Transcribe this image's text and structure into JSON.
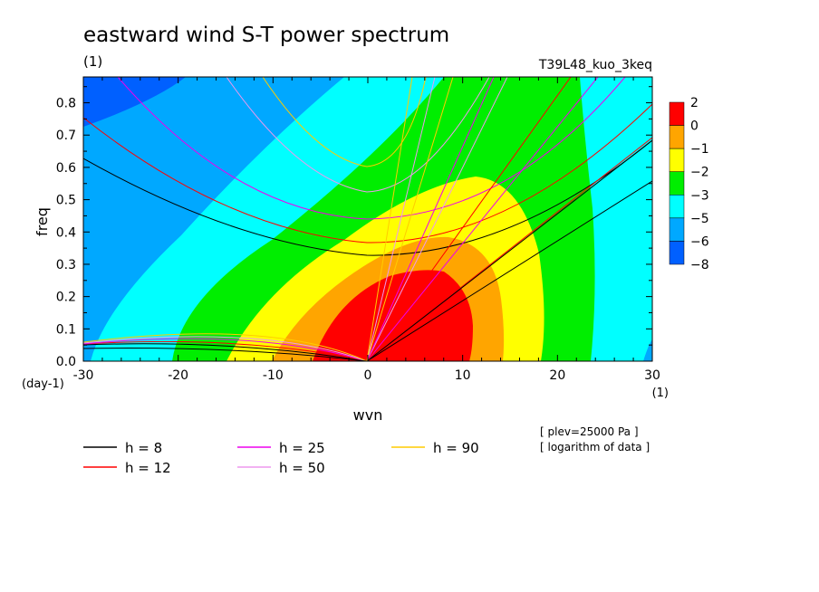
{
  "title": "eastward wind S-T power spectrum",
  "subtitle_left": "(1)",
  "subtitle_right": "T39L48_kuo_3keq",
  "ylabel": "freq",
  "y_unit": "(day-1)",
  "xlabel": "wvn",
  "x_unit": "(1)",
  "notes": [
    "[ plev=25000 Pa ]",
    "[ logarithm of data ]"
  ],
  "colorbar": {
    "labels": [
      "2",
      "0",
      "-1",
      "-2",
      "-3",
      "-5",
      "-6",
      "-8"
    ],
    "colors": [
      "#ff0000",
      "#ffa500",
      "#ffff00",
      "#00ee00",
      "#00ffff",
      "#00a8ff",
      "#0060ff"
    ]
  },
  "legend": [
    {
      "label": "h =  8",
      "color": "#000000"
    },
    {
      "label": "h = 12",
      "color": "#ff0000"
    },
    {
      "label": "h = 25",
      "color": "#ee00ee"
    },
    {
      "label": "h = 50",
      "color": "#ee99ee"
    },
    {
      "label": "h = 90",
      "color": "#ffcc00"
    }
  ],
  "chart_data": {
    "type": "heatmap",
    "title": "eastward wind S-T power spectrum",
    "xlabel": "wvn",
    "ylabel": "freq",
    "xlim": [
      -30,
      30
    ],
    "ylim": [
      0,
      0.88
    ],
    "xticks": [
      -30,
      -20,
      -10,
      0,
      10,
      20,
      30
    ],
    "yticks": [
      0.0,
      0.1,
      0.2,
      0.3,
      0.4,
      0.5,
      0.6,
      0.7,
      0.8
    ],
    "contour_levels": [
      2,
      0,
      -1,
      -2,
      -3,
      -5,
      -6,
      -8
    ],
    "dispersion_curves": [
      {
        "name": "h = 8",
        "color": "#000000"
      },
      {
        "name": "h = 12",
        "color": "#ff0000"
      },
      {
        "name": "h = 25",
        "color": "#ee00ee"
      },
      {
        "name": "h = 50",
        "color": "#ee99ee"
      },
      {
        "name": "h = 90",
        "color": "#ffcc00"
      }
    ]
  }
}
